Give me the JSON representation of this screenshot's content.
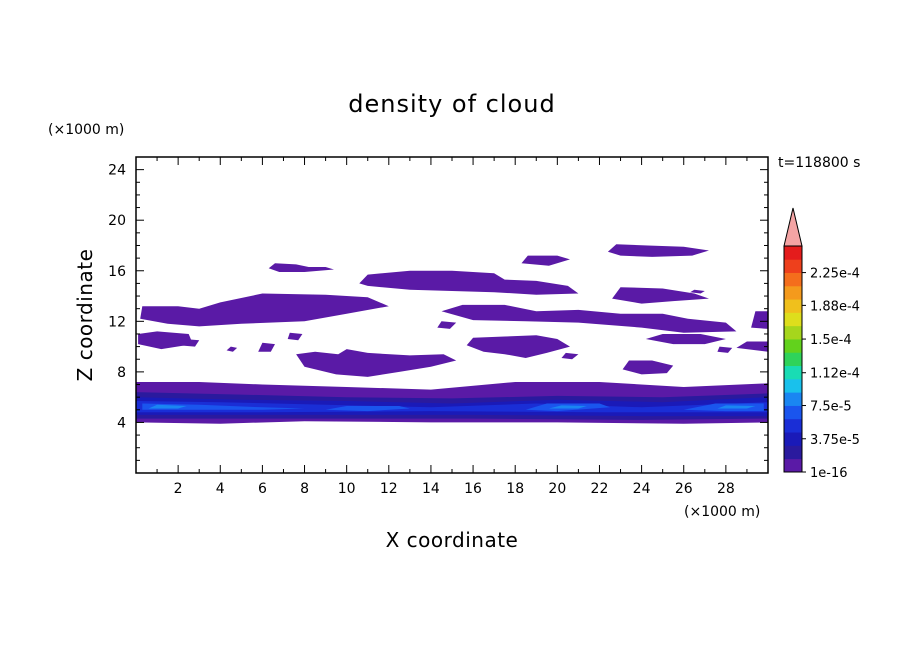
{
  "chart_data": {
    "type": "heatmap",
    "title": "density of cloud",
    "xlabel": "X coordinate",
    "ylabel": "Z coordinate",
    "x_unit": "(×1000 m)",
    "y_unit": "(×1000 m)",
    "time_label": "t=118800 s",
    "xlim": [
      0,
      30
    ],
    "ylim": [
      0,
      25
    ],
    "x_ticks": [
      2,
      4,
      6,
      8,
      10,
      12,
      14,
      16,
      18,
      20,
      22,
      24,
      26,
      28
    ],
    "x_tick_labels": [
      "2",
      "4",
      "6",
      "8",
      "10",
      "12",
      "14",
      "16",
      "18",
      "20",
      "22",
      "24",
      "26",
      "28"
    ],
    "y_ticks": [
      4,
      8,
      12,
      16,
      20,
      24
    ],
    "y_tick_labels": [
      "4",
      "8",
      "12",
      "16",
      "20",
      "24"
    ],
    "colorbar": {
      "labels": [
        {
          "value": 1e-16,
          "text": "1e-16"
        },
        {
          "value": 3.75e-05,
          "text": "3.75e-5"
        },
        {
          "value": 7.5e-05,
          "text": "7.5e-5"
        },
        {
          "value": 0.000112,
          "text": "1.12e-4"
        },
        {
          "value": 0.00015,
          "text": "1.5e-4"
        },
        {
          "value": 0.000188,
          "text": "1.88e-4"
        },
        {
          "value": 0.000225,
          "text": "2.25e-4"
        }
      ],
      "colors": [
        "#5a1aa6",
        "#2a1a9e",
        "#1a1ab8",
        "#1a2ed6",
        "#1a55ee",
        "#1a86f2",
        "#19c1ec",
        "#19dcb4",
        "#2fd35a",
        "#62d21c",
        "#a6d61c",
        "#dede1c",
        "#f0c01c",
        "#f49a1c",
        "#f46e1c",
        "#ee401c",
        "#e41c1c"
      ],
      "extend_color": "#f4a4a4"
    },
    "regions": [
      {
        "level": 1,
        "points": [
          [
            0,
            4
          ],
          [
            0,
            7.2
          ],
          [
            3,
            7.2
          ],
          [
            6,
            7
          ],
          [
            10,
            6.8
          ],
          [
            14,
            6.6
          ],
          [
            18,
            7.2
          ],
          [
            22,
            7.2
          ],
          [
            26,
            6.8
          ],
          [
            30,
            7.1
          ],
          [
            30,
            4
          ],
          [
            26,
            3.9
          ],
          [
            20,
            4
          ],
          [
            14,
            4
          ],
          [
            8,
            4.1
          ],
          [
            4,
            3.9
          ]
        ]
      },
      {
        "level": 2,
        "points": [
          [
            0,
            4.3
          ],
          [
            0,
            6.4
          ],
          [
            5,
            6.2
          ],
          [
            10,
            6
          ],
          [
            15,
            5.9
          ],
          [
            20,
            6.1
          ],
          [
            25,
            6
          ],
          [
            30,
            6.3
          ],
          [
            30,
            4.3
          ],
          [
            24,
            4.2
          ],
          [
            16,
            4.3
          ],
          [
            8,
            4.3
          ]
        ]
      },
      {
        "level": 3,
        "points": [
          [
            0,
            4.6
          ],
          [
            0,
            6
          ],
          [
            5,
            5.8
          ],
          [
            10,
            5.7
          ],
          [
            15,
            5.5
          ],
          [
            20,
            5.8
          ],
          [
            25,
            5.6
          ],
          [
            30,
            6
          ],
          [
            30,
            4.5
          ],
          [
            24,
            4.5
          ],
          [
            16,
            4.6
          ],
          [
            8,
            4.6
          ]
        ]
      },
      {
        "level": 4,
        "points": [
          [
            0,
            4.8
          ],
          [
            0,
            5.7
          ],
          [
            4,
            5.6
          ],
          [
            9,
            5.4
          ],
          [
            14,
            5.2
          ],
          [
            19,
            5.5
          ],
          [
            24,
            5.2
          ],
          [
            30,
            5.6
          ],
          [
            30,
            4.8
          ],
          [
            22,
            4.8
          ],
          [
            14,
            4.9
          ],
          [
            6,
            4.8
          ]
        ]
      },
      {
        "level": 5,
        "points": [
          [
            0.3,
            5
          ],
          [
            0.3,
            5.5
          ],
          [
            3,
            5.4
          ],
          [
            6,
            5.2
          ],
          [
            8,
            5.1
          ],
          [
            6,
            5
          ],
          [
            3,
            5
          ]
        ]
      },
      {
        "level": 5,
        "points": [
          [
            9,
            5
          ],
          [
            10,
            5.3
          ],
          [
            12.5,
            5.3
          ],
          [
            13,
            5.1
          ],
          [
            11,
            4.9
          ]
        ]
      },
      {
        "level": 5,
        "points": [
          [
            18.5,
            5
          ],
          [
            19.5,
            5.5
          ],
          [
            22,
            5.5
          ],
          [
            22.5,
            5.2
          ],
          [
            20,
            4.9
          ]
        ]
      },
      {
        "level": 5,
        "points": [
          [
            26,
            5
          ],
          [
            27.5,
            5.5
          ],
          [
            29.8,
            5.5
          ],
          [
            29.8,
            4.9
          ],
          [
            28,
            4.9
          ]
        ]
      },
      {
        "level": 6,
        "points": [
          [
            0.6,
            5.1
          ],
          [
            1,
            5.4
          ],
          [
            2.4,
            5.3
          ],
          [
            2,
            5.1
          ]
        ]
      },
      {
        "level": 6,
        "points": [
          [
            19.6,
            5.1
          ],
          [
            20.2,
            5.35
          ],
          [
            21.4,
            5.3
          ],
          [
            21,
            5.1
          ]
        ]
      },
      {
        "level": 6,
        "points": [
          [
            27.6,
            5.1
          ],
          [
            28,
            5.35
          ],
          [
            29.4,
            5.3
          ],
          [
            29,
            5.1
          ]
        ]
      },
      {
        "level": 1,
        "points": [
          [
            0.2,
            12.2
          ],
          [
            0.3,
            13.2
          ],
          [
            2,
            13.2
          ],
          [
            3,
            13
          ],
          [
            4,
            13.5
          ],
          [
            6,
            14.2
          ],
          [
            9,
            14.1
          ],
          [
            11,
            13.9
          ],
          [
            12,
            13.2
          ],
          [
            10,
            12.6
          ],
          [
            8,
            12
          ],
          [
            5,
            11.8
          ],
          [
            3,
            11.6
          ],
          [
            1.5,
            11.8
          ]
        ]
      },
      {
        "level": 1,
        "points": [
          [
            10.6,
            15
          ],
          [
            11,
            15.7
          ],
          [
            13,
            16
          ],
          [
            15,
            16
          ],
          [
            17,
            15.8
          ],
          [
            17.5,
            15.3
          ],
          [
            19,
            15.2
          ],
          [
            20.5,
            14.8
          ],
          [
            21,
            14.2
          ],
          [
            19,
            14.1
          ],
          [
            17,
            14.3
          ],
          [
            15,
            14.4
          ],
          [
            13,
            14.5
          ],
          [
            11,
            14.8
          ]
        ]
      },
      {
        "level": 1,
        "points": [
          [
            6.3,
            16.2
          ],
          [
            6.6,
            16.6
          ],
          [
            7.6,
            16.5
          ],
          [
            8.2,
            16.3
          ],
          [
            9,
            16.3
          ],
          [
            9.4,
            16.1
          ],
          [
            8,
            15.9
          ],
          [
            6.8,
            15.9
          ]
        ]
      },
      {
        "level": 1,
        "points": [
          [
            14.5,
            12.8
          ],
          [
            15.5,
            13.3
          ],
          [
            17.5,
            13.3
          ],
          [
            19,
            12.8
          ],
          [
            21,
            12.9
          ],
          [
            23,
            12.6
          ],
          [
            25,
            12.6
          ],
          [
            26.2,
            12.2
          ],
          [
            28,
            11.9
          ],
          [
            28.5,
            11.2
          ],
          [
            26,
            11.1
          ],
          [
            24,
            11.5
          ],
          [
            21,
            11.9
          ],
          [
            18.5,
            12
          ],
          [
            16,
            12.1
          ]
        ]
      },
      {
        "level": 1,
        "points": [
          [
            0.1,
            10.2
          ],
          [
            0.1,
            11
          ],
          [
            1,
            11.2
          ],
          [
            2.5,
            11
          ],
          [
            2.7,
            10.2
          ],
          [
            1.2,
            9.8
          ]
        ]
      },
      {
        "level": 1,
        "points": [
          [
            22.6,
            13.8
          ],
          [
            23,
            14.7
          ],
          [
            25,
            14.6
          ],
          [
            26.5,
            14.2
          ],
          [
            27.2,
            13.8
          ],
          [
            25.5,
            13.6
          ],
          [
            24,
            13.4
          ]
        ]
      },
      {
        "level": 1,
        "points": [
          [
            22.4,
            17.5
          ],
          [
            22.8,
            18.1
          ],
          [
            24.3,
            18
          ],
          [
            26,
            17.9
          ],
          [
            27.2,
            17.6
          ],
          [
            26.4,
            17.2
          ],
          [
            24.5,
            17.1
          ],
          [
            23,
            17.2
          ]
        ]
      },
      {
        "level": 1,
        "points": [
          [
            18.3,
            16.6
          ],
          [
            18.6,
            17.2
          ],
          [
            20,
            17.2
          ],
          [
            20.6,
            16.9
          ],
          [
            19.6,
            16.4
          ]
        ]
      },
      {
        "level": 1,
        "points": [
          [
            7.6,
            9.4
          ],
          [
            8.5,
            9.6
          ],
          [
            9.6,
            9.4
          ],
          [
            10,
            9.8
          ],
          [
            11,
            9.5
          ],
          [
            13,
            9.3
          ],
          [
            14.6,
            9.4
          ],
          [
            15.2,
            8.9
          ],
          [
            14,
            8.4
          ],
          [
            12.5,
            8
          ],
          [
            11,
            7.6
          ],
          [
            9.5,
            7.8
          ],
          [
            8,
            8.4
          ]
        ]
      },
      {
        "level": 1,
        "points": [
          [
            15.7,
            10.1
          ],
          [
            16,
            10.7
          ],
          [
            17.5,
            10.8
          ],
          [
            19,
            10.9
          ],
          [
            20,
            10.6
          ],
          [
            20.6,
            10
          ],
          [
            19.5,
            9.5
          ],
          [
            18.5,
            9.1
          ],
          [
            17.5,
            9.4
          ],
          [
            16.5,
            9.6
          ]
        ]
      },
      {
        "level": 1,
        "points": [
          [
            23.1,
            8.2
          ],
          [
            23.4,
            8.9
          ],
          [
            24.5,
            8.9
          ],
          [
            25.5,
            8.5
          ],
          [
            25.2,
            7.9
          ],
          [
            24,
            7.8
          ]
        ]
      },
      {
        "level": 1,
        "points": [
          [
            24.2,
            10.6
          ],
          [
            25,
            11
          ],
          [
            26.8,
            11
          ],
          [
            28,
            10.6
          ],
          [
            27,
            10.2
          ],
          [
            25.5,
            10.2
          ]
        ]
      },
      {
        "level": 1,
        "points": [
          [
            29.2,
            11.5
          ],
          [
            29.4,
            12.8
          ],
          [
            30,
            12.8
          ],
          [
            30,
            11.4
          ]
        ]
      },
      {
        "level": 1,
        "points": [
          [
            28.5,
            9.9
          ],
          [
            29,
            10.4
          ],
          [
            30,
            10.4
          ],
          [
            30,
            9.6
          ]
        ]
      },
      {
        "level": 1,
        "points": [
          [
            2,
            10.1
          ],
          [
            2.3,
            10.6
          ],
          [
            3,
            10.5
          ],
          [
            2.8,
            10
          ]
        ]
      },
      {
        "level": 1,
        "points": [
          [
            4.3,
            9.7
          ],
          [
            4.5,
            10
          ],
          [
            4.8,
            9.9
          ],
          [
            4.6,
            9.6
          ]
        ]
      },
      {
        "level": 1,
        "points": [
          [
            5.8,
            9.6
          ],
          [
            6,
            10.3
          ],
          [
            6.6,
            10.2
          ],
          [
            6.4,
            9.6
          ]
        ]
      },
      {
        "level": 1,
        "points": [
          [
            7.2,
            10.6
          ],
          [
            7.3,
            11.1
          ],
          [
            7.9,
            11
          ],
          [
            7.7,
            10.5
          ]
        ]
      },
      {
        "level": 1,
        "points": [
          [
            14.3,
            11.5
          ],
          [
            14.5,
            12
          ],
          [
            15.2,
            11.9
          ],
          [
            14.9,
            11.4
          ]
        ]
      },
      {
        "level": 1,
        "points": [
          [
            20.2,
            9.1
          ],
          [
            20.4,
            9.5
          ],
          [
            21,
            9.4
          ],
          [
            20.7,
            9
          ]
        ]
      },
      {
        "level": 1,
        "points": [
          [
            27.6,
            9.6
          ],
          [
            27.7,
            10
          ],
          [
            28.3,
            9.9
          ],
          [
            28.1,
            9.5
          ]
        ]
      },
      {
        "level": 1,
        "points": [
          [
            26.3,
            14.3
          ],
          [
            26.5,
            14.5
          ],
          [
            27,
            14.4
          ],
          [
            26.8,
            14.2
          ]
        ]
      }
    ]
  }
}
